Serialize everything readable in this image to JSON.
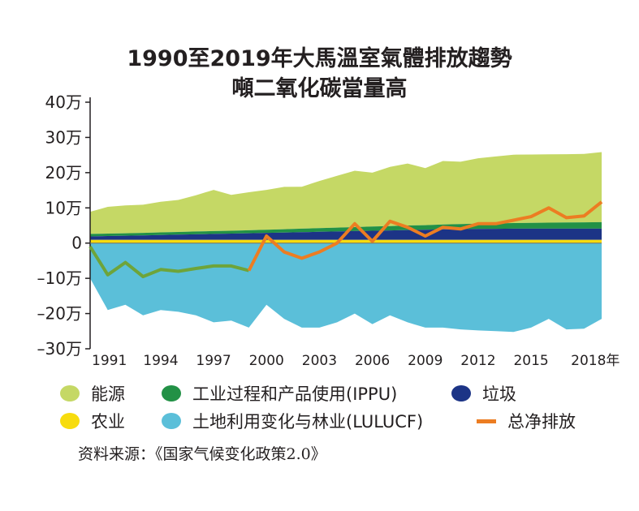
{
  "chart_data": {
    "type": "area",
    "title_line1": "1990至2019年大馬溫室氣體排放趨勢",
    "title_line2": "噸二氧化碳當量高",
    "ylim": [
      -300000,
      400000
    ],
    "y_ticks": [
      400000,
      300000,
      200000,
      100000,
      0,
      -100000,
      -200000,
      -300000
    ],
    "y_tick_labels": [
      "40万",
      "30万",
      "20万",
      "10万",
      "0",
      "–10万",
      "–20万",
      "–30万"
    ],
    "x_tick_labels": [
      "1991",
      "1994",
      "1997",
      "2000",
      "2003",
      "2006",
      "2009",
      "2012",
      "2015",
      "2018年"
    ],
    "x_tick_years": [
      1991,
      1994,
      1997,
      2000,
      2003,
      2006,
      2009,
      2012,
      2015,
      2018
    ],
    "years": [
      1990,
      1991,
      1992,
      1993,
      1994,
      1995,
      1996,
      1997,
      1998,
      1999,
      2000,
      2001,
      2002,
      2003,
      2004,
      2005,
      2006,
      2007,
      2008,
      2009,
      2010,
      2011,
      2012,
      2013,
      2014,
      2015,
      2016,
      2017,
      2018,
      2019
    ],
    "series": [
      {
        "name": "能源",
        "color": "#c5d865",
        "values": [
          63000,
          76000,
          79000,
          80000,
          87000,
          91000,
          103000,
          117000,
          102000,
          108000,
          113000,
          120000,
          119000,
          134000,
          147000,
          160000,
          153000,
          168000,
          176000,
          162000,
          180000,
          177000,
          186000,
          190000,
          194000,
          194000,
          194000,
          194000,
          194000,
          199000
        ]
      },
      {
        "name": "工业过程和产品使用(IPPU)",
        "color": "#229146",
        "values": [
          7000,
          7000,
          7000,
          7000,
          7500,
          7500,
          8000,
          8000,
          8000,
          8500,
          9000,
          9500,
          10000,
          10500,
          11000,
          11500,
          12000,
          12500,
          13000,
          13000,
          14000,
          14500,
          15000,
          15500,
          16000,
          16500,
          17000,
          17500,
          18000,
          18500
        ]
      },
      {
        "name": "垃圾",
        "color": "#1c3486",
        "values": [
          10000,
          11000,
          12000,
          13000,
          14000,
          15000,
          16000,
          17000,
          18000,
          19000,
          20000,
          21000,
          22000,
          23000,
          24000,
          25000,
          26000,
          27000,
          28000,
          29000,
          30000,
          30500,
          31000,
          31500,
          32000,
          32000,
          32000,
          32000,
          32000,
          32000
        ]
      },
      {
        "name": "农业",
        "color": "#f7dc0e",
        "values": [
          9000,
          9000,
          9000,
          9000,
          9000,
          9000,
          9000,
          9000,
          9000,
          9000,
          9000,
          9000,
          9000,
          9000,
          9000,
          9000,
          9000,
          9000,
          9000,
          9000,
          9000,
          9000,
          9000,
          9000,
          9000,
          9000,
          9000,
          9000,
          9000,
          9000
        ]
      },
      {
        "name": "土地利用变化与林业(LULUCF)",
        "color": "#5bbfd9",
        "values": [
          -100000,
          -190000,
          -175000,
          -205000,
          -190000,
          -195000,
          -205000,
          -225000,
          -220000,
          -240000,
          -175000,
          -215000,
          -240000,
          -240000,
          -225000,
          -200000,
          -230000,
          -205000,
          -225000,
          -240000,
          -240000,
          -245000,
          -248000,
          -250000,
          -252000,
          -240000,
          -215000,
          -245000,
          -243000,
          -215000
        ]
      },
      {
        "name": "总净排放",
        "color": "#ec7d22",
        "values": [
          -10000,
          -90000,
          -55000,
          -95000,
          -75000,
          -80000,
          -72000,
          -65000,
          -65000,
          -78000,
          20000,
          -25000,
          -43000,
          -25000,
          0,
          55000,
          5000,
          62000,
          45000,
          20000,
          45000,
          40000,
          55000,
          55000,
          65000,
          75000,
          100000,
          72000,
          77000,
          117000
        ]
      }
    ],
    "net_early_line_color": "#6ea43a"
  },
  "legend": [
    {
      "label": "能源",
      "color": "#c5d865",
      "shape": "dot"
    },
    {
      "label": "工业过程和产品使用(IPPU)",
      "color": "#229146",
      "shape": "dot"
    },
    {
      "label": "垃圾",
      "color": "#1c3486",
      "shape": "dot"
    },
    {
      "label": "农业",
      "color": "#f7dc0e",
      "shape": "dot"
    },
    {
      "label": "土地利用变化与林业(LULUCF)",
      "color": "#5bbfd9",
      "shape": "dot"
    },
    {
      "label": "总净排放",
      "color": "#ec7d22",
      "shape": "dash"
    }
  ],
  "source": "资料来源：《国家气候变化政策2.0》"
}
